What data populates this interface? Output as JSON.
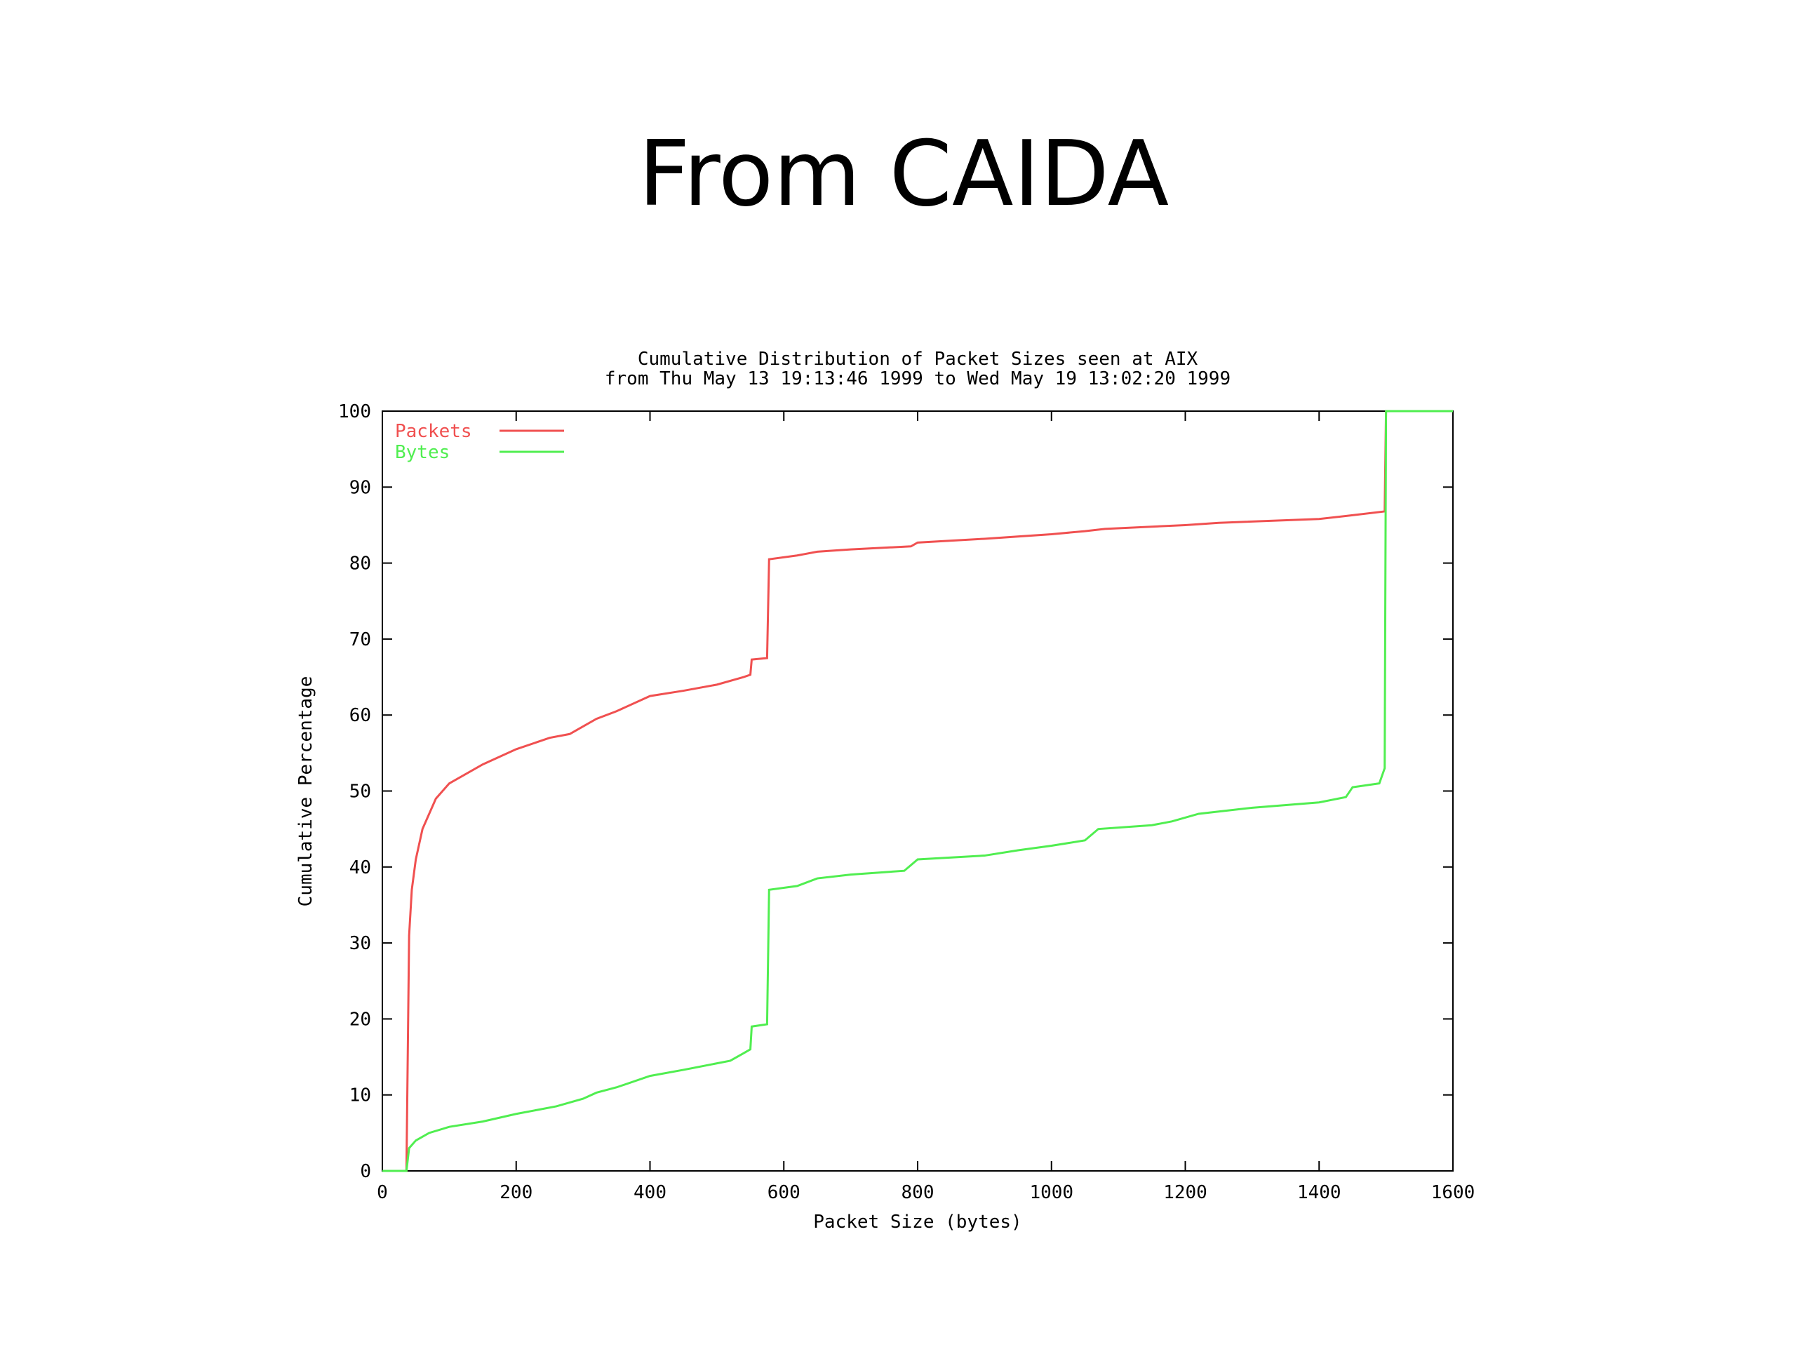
{
  "slide_title": "From CAIDA",
  "chart_data": {
    "type": "line",
    "title": [
      "Cumulative Distribution of Packet Sizes seen at AIX",
      "from Thu May 13 19:13:46 1999 to Wed May 19 13:02:20 1999"
    ],
    "x_label": "Packet Size (bytes)",
    "y_label": "Cumulative Percentage",
    "xlim": [
      0,
      1600
    ],
    "ylim": [
      0,
      100
    ],
    "xticks": [
      0,
      200,
      400,
      600,
      800,
      1000,
      1200,
      1400,
      1600
    ],
    "yticks": [
      0,
      10,
      20,
      30,
      40,
      50,
      60,
      70,
      80,
      90,
      100
    ],
    "legend": "top-left",
    "series": [
      {
        "name": "Packets",
        "color": "#f05050",
        "x": [
          0,
          36,
          40,
          44,
          50,
          60,
          80,
          100,
          150,
          200,
          250,
          280,
          300,
          320,
          350,
          400,
          450,
          500,
          540,
          550,
          552,
          575,
          578,
          620,
          650,
          700,
          790,
          800,
          900,
          1000,
          1050,
          1080,
          1200,
          1250,
          1400,
          1450,
          1498,
          1500,
          1600
        ],
        "values": [
          0,
          0,
          31,
          37,
          41,
          45,
          49,
          51,
          53.5,
          55.5,
          57,
          57.5,
          58.5,
          59.5,
          60.5,
          62.5,
          63.2,
          64,
          65,
          65.3,
          67.3,
          67.5,
          80.5,
          81,
          81.5,
          81.8,
          82.2,
          82.7,
          83.2,
          83.8,
          84.2,
          84.5,
          85,
          85.3,
          85.8,
          86.3,
          86.8,
          100,
          100
        ]
      },
      {
        "name": "Bytes",
        "color": "#50ee50",
        "x": [
          0,
          36,
          40,
          50,
          70,
          100,
          150,
          200,
          260,
          300,
          320,
          350,
          400,
          450,
          520,
          540,
          550,
          552,
          575,
          578,
          620,
          650,
          700,
          780,
          800,
          900,
          950,
          1000,
          1050,
          1070,
          1150,
          1180,
          1220,
          1300,
          1400,
          1440,
          1450,
          1490,
          1498,
          1500,
          1600
        ],
        "values": [
          0,
          0,
          3,
          4,
          5,
          5.8,
          6.5,
          7.5,
          8.5,
          9.5,
          10.3,
          11,
          12.5,
          13.3,
          14.5,
          15.5,
          16,
          19,
          19.3,
          37,
          37.5,
          38.5,
          39,
          39.5,
          41,
          41.5,
          42.2,
          42.8,
          43.5,
          45,
          45.5,
          46,
          47,
          47.8,
          48.5,
          49.2,
          50.5,
          51,
          53,
          100,
          100
        ]
      }
    ]
  }
}
